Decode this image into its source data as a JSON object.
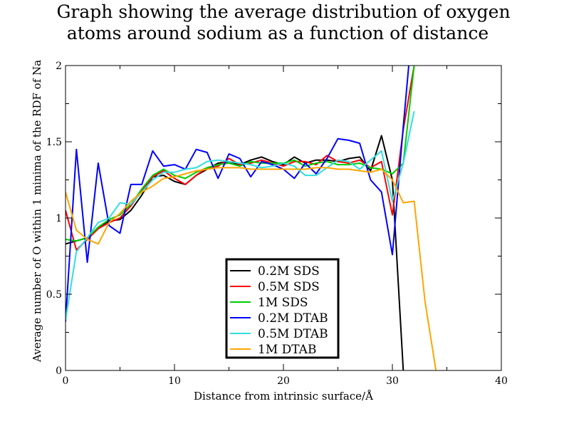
{
  "chart_data": {
    "type": "line",
    "title_lines": [
      "Graph showing the average distribution of oxygen",
      "atoms around sodium as a function of distance"
    ],
    "xlabel": "Distance from intrinsic surface/Å",
    "ylabel": "Average number of O within 1 minima of the RDF of Na",
    "xlim": [
      0,
      40
    ],
    "ylim": [
      0,
      2
    ],
    "x_ticks": [
      0,
      10,
      20,
      30,
      40
    ],
    "x_tick_labels": [
      "0",
      "10",
      "20",
      "30",
      "40"
    ],
    "y_ticks": [
      0,
      0.5,
      1,
      1.5,
      2
    ],
    "y_tick_labels": [
      "0",
      "0.5",
      "1",
      "1.5",
      "2"
    ],
    "grid": false,
    "legend_position": "bottom-center",
    "series": [
      {
        "name": "0.2M SDS",
        "color": "#000000",
        "x": [
          0,
          1,
          2,
          3,
          4,
          5,
          6,
          7,
          8,
          9,
          10,
          11,
          12,
          13,
          14,
          15,
          16,
          17,
          18,
          19,
          20,
          21,
          22,
          23,
          24,
          25,
          26,
          27,
          28,
          29,
          30,
          31
        ],
        "y": [
          0.83,
          0.85,
          0.87,
          0.93,
          0.98,
          0.99,
          1.05,
          1.15,
          1.27,
          1.28,
          1.24,
          1.22,
          1.28,
          1.32,
          1.36,
          1.37,
          1.35,
          1.38,
          1.4,
          1.37,
          1.35,
          1.4,
          1.36,
          1.38,
          1.38,
          1.37,
          1.39,
          1.4,
          1.31,
          1.54,
          1.25,
          0
        ]
      },
      {
        "name": "0.5M SDS",
        "color": "#ff0000",
        "x": [
          0,
          1,
          2,
          3,
          4,
          5,
          6,
          7,
          8,
          9,
          10,
          11,
          12,
          13,
          14,
          15,
          16,
          17,
          18,
          19,
          20,
          21,
          22,
          23,
          24,
          25,
          26,
          27,
          28,
          29,
          30,
          31,
          32
        ],
        "y": [
          1.05,
          0.79,
          0.86,
          0.93,
          0.97,
          1.0,
          1.08,
          1.18,
          1.27,
          1.31,
          1.26,
          1.22,
          1.28,
          1.33,
          1.34,
          1.39,
          1.35,
          1.36,
          1.38,
          1.36,
          1.34,
          1.37,
          1.37,
          1.35,
          1.41,
          1.37,
          1.36,
          1.38,
          1.33,
          1.37,
          1.02,
          1.58,
          2.0
        ]
      },
      {
        "name": "1M SDS",
        "color": "#00cc00",
        "x": [
          0,
          1,
          2,
          3,
          4,
          5,
          6,
          7,
          8,
          9,
          10,
          11,
          12,
          13,
          14,
          15,
          16,
          17,
          18,
          19,
          20,
          21,
          22,
          23,
          24,
          25,
          26,
          27,
          28,
          29,
          30,
          31,
          32
        ],
        "y": [
          0.86,
          0.85,
          0.87,
          0.94,
          0.99,
          1.02,
          1.09,
          1.19,
          1.28,
          1.32,
          1.28,
          1.26,
          1.3,
          1.33,
          1.35,
          1.36,
          1.34,
          1.37,
          1.36,
          1.36,
          1.36,
          1.38,
          1.34,
          1.36,
          1.37,
          1.35,
          1.35,
          1.36,
          1.33,
          1.32,
          1.29,
          1.36,
          2.0
        ]
      },
      {
        "name": "0.2M DTAB",
        "color": "#0000ff",
        "x": [
          0,
          1,
          2,
          3,
          4,
          5,
          6,
          7,
          8,
          9,
          10,
          11,
          12,
          13,
          14,
          15,
          16,
          17,
          18,
          19,
          20,
          21,
          22,
          23,
          24,
          25,
          26,
          27,
          28,
          29,
          30,
          31,
          31.5
        ],
        "y": [
          0.32,
          1.45,
          0.71,
          1.36,
          0.95,
          0.9,
          1.22,
          1.22,
          1.44,
          1.34,
          1.35,
          1.32,
          1.45,
          1.43,
          1.26,
          1.42,
          1.39,
          1.27,
          1.37,
          1.35,
          1.32,
          1.26,
          1.36,
          1.29,
          1.39,
          1.52,
          1.51,
          1.49,
          1.25,
          1.17,
          0.76,
          1.6,
          2.0
        ]
      },
      {
        "name": "0.5M DTAB",
        "color": "#33dddd",
        "x": [
          0,
          1,
          2,
          3,
          4,
          5,
          6,
          7,
          8,
          9,
          10,
          11,
          12,
          13,
          14,
          15,
          16,
          17,
          18,
          19,
          20,
          21,
          22,
          23,
          24,
          25,
          26,
          27,
          28,
          29,
          30,
          31,
          32
        ],
        "y": [
          0.33,
          0.78,
          0.87,
          0.97,
          1.0,
          1.1,
          1.09,
          1.17,
          1.25,
          1.3,
          1.3,
          1.32,
          1.33,
          1.37,
          1.38,
          1.37,
          1.36,
          1.35,
          1.33,
          1.34,
          1.36,
          1.34,
          1.28,
          1.28,
          1.33,
          1.38,
          1.37,
          1.32,
          1.38,
          1.44,
          1.11,
          1.36,
          1.7
        ]
      },
      {
        "name": "1M DTAB",
        "color": "#ffa500",
        "x": [
          0,
          1,
          2,
          3,
          4,
          5,
          6,
          7,
          8,
          9,
          10,
          11,
          12,
          13,
          14,
          15,
          16,
          17,
          18,
          19,
          20,
          21,
          22,
          23,
          24,
          25,
          26,
          27,
          28,
          29,
          30,
          31,
          32,
          33,
          34
        ],
        "y": [
          1.17,
          0.92,
          0.86,
          0.83,
          0.97,
          1.03,
          1.11,
          1.17,
          1.21,
          1.26,
          1.27,
          1.29,
          1.31,
          1.32,
          1.33,
          1.33,
          1.33,
          1.32,
          1.32,
          1.32,
          1.32,
          1.32,
          1.32,
          1.33,
          1.33,
          1.32,
          1.32,
          1.31,
          1.3,
          1.32,
          1.25,
          1.1,
          1.11,
          0.45,
          0
        ]
      }
    ]
  }
}
